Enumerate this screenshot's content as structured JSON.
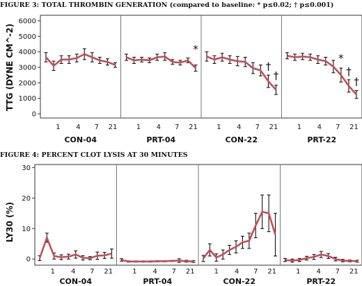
{
  "chart_data": [
    {
      "type": "line",
      "title": "FIGURE 3:  TOTAL THROMBIN GENERATION (compared to baseline: * p≤0.02; † p≤0.001)",
      "ylabel": "TTG (DYNE CM^-2)",
      "ylim": [
        0,
        6000
      ],
      "yticks": [
        "0",
        "1000",
        "2000",
        "3000",
        "4000",
        "5000",
        "6000"
      ],
      "xticks": [
        "1",
        "4",
        "7",
        "21"
      ],
      "panels": [
        {
          "name": "CON-04",
          "values": [
            3650,
            3100,
            3500,
            3500,
            3600,
            3850,
            3650,
            3450,
            3350,
            3150
          ],
          "errors": [
            300,
            300,
            250,
            250,
            250,
            350,
            300,
            200,
            200,
            150
          ],
          "annotations": []
        },
        {
          "name": "PRT-04",
          "values": [
            3650,
            3450,
            3500,
            3450,
            3650,
            3700,
            3350,
            3300,
            3450,
            2950
          ],
          "errors": [
            200,
            200,
            150,
            150,
            200,
            250,
            150,
            150,
            150,
            200
          ],
          "annotations": [
            {
              "index": 9,
              "text": "*",
              "value": 3950
            }
          ]
        },
        {
          "name": "CON-22",
          "values": [
            3700,
            3500,
            3650,
            3500,
            3400,
            3350,
            2950,
            2800,
            2100,
            1550
          ],
          "errors": [
            300,
            250,
            250,
            250,
            300,
            300,
            350,
            350,
            400,
            300
          ],
          "annotations": [
            {
              "index": 8,
              "text": "†",
              "value": 2850
            },
            {
              "index": 9,
              "text": "†",
              "value": 2250
            }
          ]
        },
        {
          "name": "PRT-22",
          "values": [
            3750,
            3650,
            3700,
            3650,
            3500,
            3400,
            3050,
            2500,
            1800,
            1250
          ],
          "errors": [
            200,
            200,
            200,
            200,
            250,
            250,
            400,
            450,
            400,
            250
          ],
          "annotations": [
            {
              "index": 7,
              "text": "*",
              "value": 3350
            },
            {
              "index": 8,
              "text": "†",
              "value": 2500
            },
            {
              "index": 9,
              "text": "†",
              "value": 1850
            }
          ]
        }
      ]
    },
    {
      "type": "line",
      "title": "FIGURE 4:  PERCENT CLOT LYSIS AT 30 MINUTES",
      "ylabel": "LY30 (%)",
      "ylim": [
        -2,
        31
      ],
      "yticks": [
        "0",
        "10",
        "20",
        "30"
      ],
      "xticks": [
        "1",
        "4",
        "7",
        "21"
      ],
      "panels": [
        {
          "name": "CON-04",
          "values": [
            0.3,
            7.0,
            1.0,
            0.6,
            0.8,
            1.5,
            0.4,
            0.3,
            1.1,
            1.2,
            1.8
          ],
          "errors": [
            0.8,
            1.5,
            1.0,
            0.8,
            0.8,
            1.2,
            0.7,
            0.5,
            1.2,
            1.0,
            1.5
          ],
          "annotations": []
        },
        {
          "name": "PRT-04",
          "values": [
            -0.3,
            -0.8,
            -0.8,
            -0.8,
            -0.8,
            -0.7,
            -0.7,
            -0.6,
            -0.5,
            -0.7,
            -0.8
          ],
          "errors": [
            0.4,
            0.2,
            0.2,
            0.2,
            0.2,
            0.2,
            0.2,
            0.2,
            0.6,
            0.3,
            0.3
          ],
          "annotations": []
        },
        {
          "name": "CON-22",
          "values": [
            0.2,
            3.0,
            0.5,
            1.5,
            3.0,
            4.0,
            5.5,
            6.0,
            11.0,
            15.5,
            15.0,
            8.0
          ],
          "errors": [
            1.0,
            2.0,
            1.2,
            1.5,
            1.5,
            2.0,
            2.0,
            2.5,
            4.0,
            5.5,
            6.0,
            7.0
          ],
          "annotations": []
        },
        {
          "name": "PRT-22",
          "values": [
            -0.3,
            -0.5,
            -0.3,
            0.3,
            0.7,
            1.5,
            1.0,
            0.0,
            -0.5,
            -0.6,
            -0.7
          ],
          "errors": [
            0.5,
            0.5,
            0.5,
            0.6,
            0.8,
            1.0,
            0.8,
            0.6,
            0.4,
            0.3,
            0.3
          ],
          "annotations": []
        }
      ]
    }
  ]
}
